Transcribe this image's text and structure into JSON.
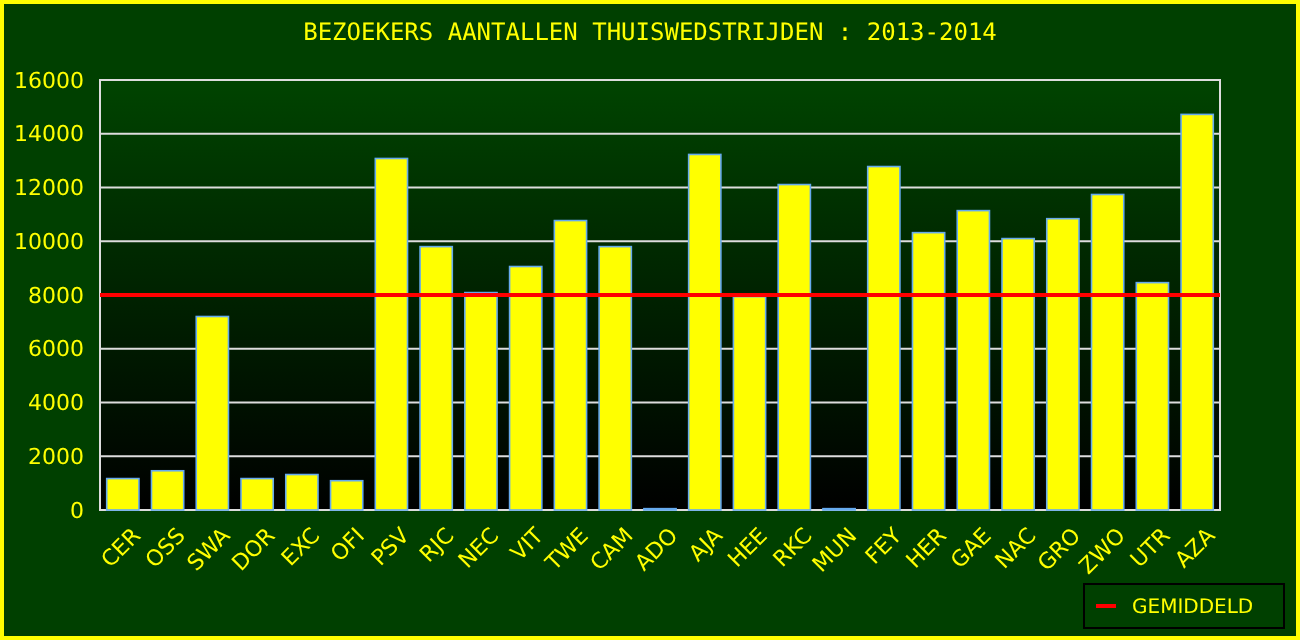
{
  "chart_data": {
    "type": "bar",
    "title": "BEZOEKERS AANTALLEN THUISWEDSTRIJDEN : 2013-2014",
    "categories": [
      "CER",
      "OSS",
      "SWA",
      "DOR",
      "EXC",
      "OFI",
      "PSV",
      "RJC",
      "NEC",
      "VIT",
      "TWE",
      "CAM",
      "ADO",
      "AJA",
      "HEE",
      "RKC",
      "MUN",
      "FEY",
      "HER",
      "GAE",
      "NAC",
      "GRO",
      "ZWO",
      "UTR",
      "AZA"
    ],
    "values": [
      1170,
      1460,
      7200,
      1170,
      1320,
      1090,
      13080,
      9800,
      8090,
      9060,
      10770,
      9800,
      50,
      13230,
      7940,
      12110,
      50,
      12780,
      10320,
      11140,
      10100,
      10840,
      11740,
      8460,
      14720
    ],
    "color": "#ffff00",
    "ylim": [
      0,
      16000
    ],
    "yticks": [
      0,
      2000,
      4000,
      6000,
      8000,
      10000,
      12000,
      14000,
      16000
    ],
    "grid": "y",
    "ref_lines": [
      {
        "axis": "y",
        "value": 8000,
        "label": "GEMIDDELD",
        "color": "#ff0000"
      }
    ],
    "legend": "bottom right"
  }
}
